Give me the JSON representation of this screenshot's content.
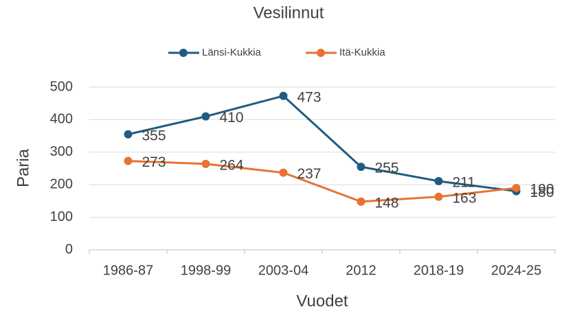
{
  "chart_data": {
    "type": "line",
    "title": "Vesilinnut",
    "xlabel": "Vuodet",
    "ylabel": "Paria",
    "categories": [
      "1986-87",
      "1998-99",
      "2003-04",
      "2012",
      "2018-19",
      "2024-25"
    ],
    "series": [
      {
        "name": "Länsi-Kukkia",
        "color": "#1f5c80",
        "values": [
          355,
          410,
          473,
          255,
          211,
          180
        ]
      },
      {
        "name": "Itä-Kukkia",
        "color": "#e97132",
        "values": [
          273,
          264,
          237,
          148,
          163,
          190
        ]
      }
    ],
    "ylim": [
      0,
      500
    ],
    "yticks": [
      0,
      100,
      200,
      300,
      400,
      500
    ],
    "grid": true,
    "legend": "top"
  }
}
